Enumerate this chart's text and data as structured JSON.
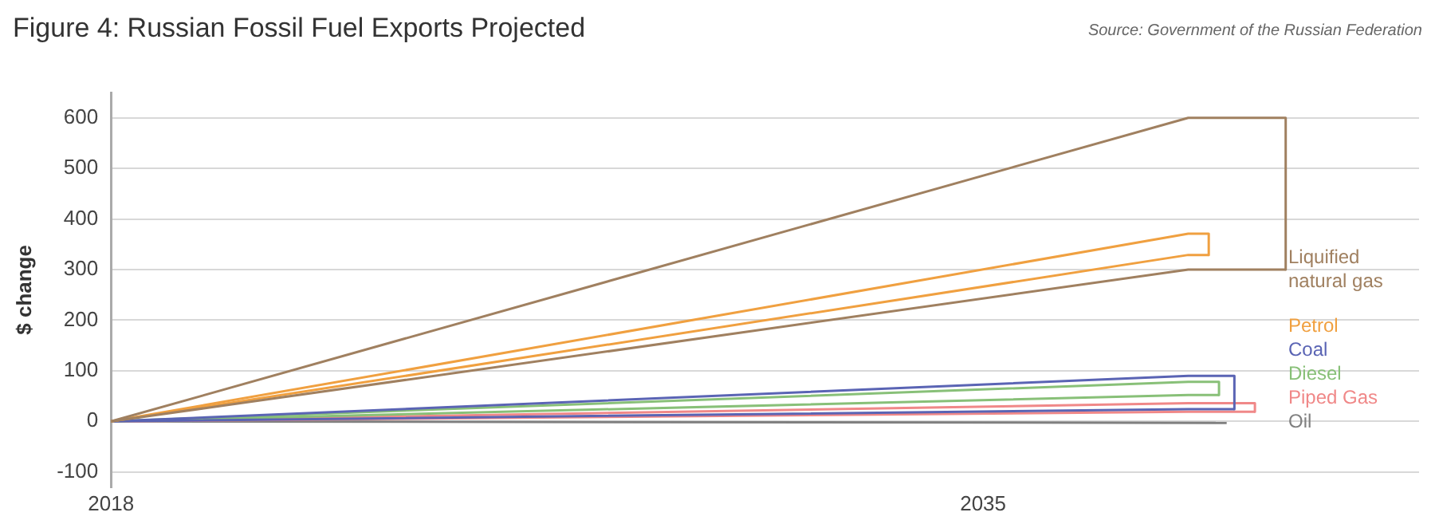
{
  "chart_data": {
    "type": "line",
    "title": "Figure 4: Russian Fossil Fuel Exports Projected",
    "ylabel": "$ change",
    "annotations": [
      "Source: Government of the Russian Federation"
    ],
    "xlim": [
      2018,
      2043.5
    ],
    "xticks": [
      2018,
      2035
    ],
    "ylim": [
      -130,
      650
    ],
    "yticks": [
      -100,
      0,
      100,
      200,
      300,
      400,
      500,
      600
    ],
    "grid": "y",
    "legend": false,
    "marker": "none",
    "line_style": "solid",
    "series": [
      {
        "name": "Liquified natural gas",
        "color": "#a08060",
        "x": [
          2018,
          2039,
          2040.9,
          2040.9
        ],
        "values": [
          0,
          600,
          600,
          300
        ]
      },
      {
        "color": "#a08060",
        "x": [
          2018,
          2039,
          2040.9
        ],
        "values": [
          0,
          300,
          300
        ]
      },
      {
        "name": "Petrol",
        "color": "#f0a040",
        "x": [
          2018,
          2039,
          2039.4,
          2039.4
        ],
        "values": [
          0,
          371,
          371,
          329
        ]
      },
      {
        "color": "#f0a040",
        "x": [
          2018,
          2039,
          2039.4
        ],
        "values": [
          0,
          329,
          329
        ]
      },
      {
        "name": "Coal",
        "color": "#5a64b4",
        "x": [
          2018,
          2039,
          2039.9,
          2039.9
        ],
        "values": [
          0,
          90,
          90,
          24
        ]
      },
      {
        "color": "#5a64b4",
        "x": [
          2018,
          2039,
          2039.9
        ],
        "values": [
          0,
          24,
          24
        ]
      },
      {
        "name": "Diesel",
        "color": "#88c078",
        "x": [
          2018,
          2039,
          2039.6,
          2039.6
        ],
        "values": [
          0,
          78,
          78,
          52
        ]
      },
      {
        "color": "#88c078",
        "x": [
          2018,
          2039,
          2039.6
        ],
        "values": [
          0,
          52,
          52
        ]
      },
      {
        "name": "Piped Gas",
        "color": "#f08888",
        "x": [
          2018,
          2039,
          2040.3,
          2040.3
        ],
        "values": [
          0,
          36,
          36,
          19
        ]
      },
      {
        "color": "#f08888",
        "x": [
          2018,
          2039,
          2040.3
        ],
        "values": [
          0,
          19,
          19
        ]
      },
      {
        "name": "Oil",
        "color": "#808080",
        "x": [
          2018,
          2039.75
        ],
        "values": [
          0,
          -3
        ]
      }
    ]
  }
}
